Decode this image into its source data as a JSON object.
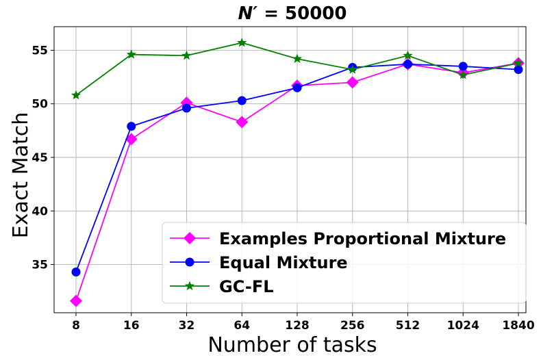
{
  "chart_data": {
    "type": "line",
    "title_prefix": "N",
    "title_prime": "′",
    "title_suffix": " = 50000",
    "xlabel": "Number of tasks",
    "ylabel": "Exact Match",
    "categories": [
      "8",
      "16",
      "32",
      "64",
      "128",
      "256",
      "512",
      "1024",
      "1840"
    ],
    "ylim": [
      30.5,
      57.2
    ],
    "yticks": [
      35,
      40,
      45,
      50,
      55
    ],
    "grid": true,
    "legend_position": "lower-right",
    "series": [
      {
        "name": "Examples Proportional Mixture",
        "color": "#ff00ff",
        "marker": "diamond",
        "values": [
          31.6,
          46.7,
          50.1,
          48.3,
          51.7,
          52.0,
          53.7,
          52.9,
          53.8
        ]
      },
      {
        "name": "Equal Mixture",
        "color": "#0000ff",
        "marker": "circle",
        "values": [
          34.3,
          47.9,
          49.6,
          50.3,
          51.5,
          53.4,
          53.7,
          53.5,
          53.2
        ]
      },
      {
        "name": "GC-FL",
        "color": "#008000",
        "marker": "star",
        "values": [
          50.8,
          54.6,
          54.5,
          55.7,
          54.2,
          53.2,
          54.5,
          52.7,
          53.8
        ]
      }
    ]
  }
}
